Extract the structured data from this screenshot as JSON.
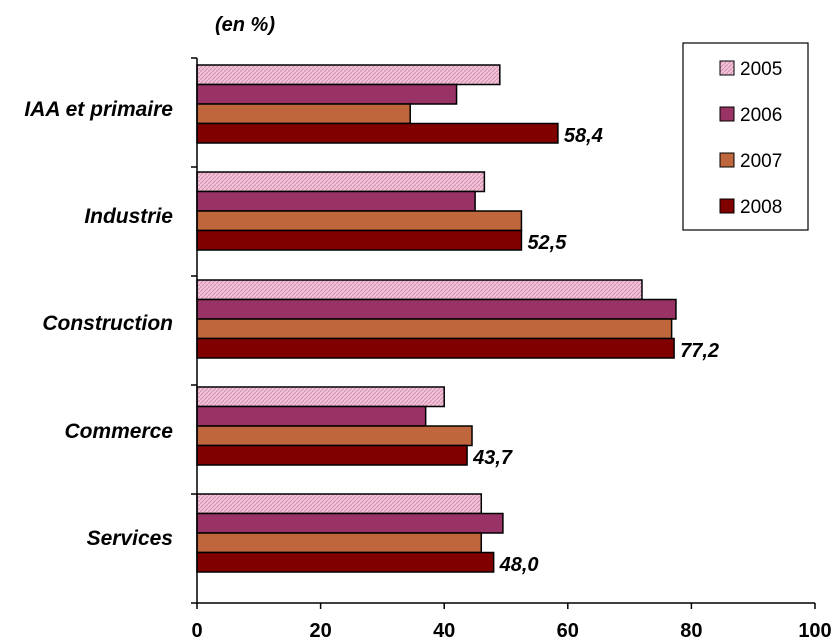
{
  "chart_data": {
    "type": "bar",
    "orientation": "horizontal",
    "unit_label": "(en %)",
    "categories": [
      "IAA et primaire",
      "Industrie",
      "Construction",
      "Commerce",
      "Services"
    ],
    "series": [
      {
        "name": "2005",
        "color": "#e6a8c4",
        "values": [
          49.0,
          46.5,
          72.0,
          40.0,
          46.0
        ]
      },
      {
        "name": "2006",
        "color": "#993366",
        "values": [
          42.0,
          45.0,
          77.5,
          37.0,
          49.5
        ]
      },
      {
        "name": "2007",
        "color": "#c0663c",
        "values": [
          34.5,
          52.5,
          76.8,
          44.5,
          46.0
        ]
      },
      {
        "name": "2008",
        "color": "#800000",
        "values": [
          58.4,
          52.5,
          77.2,
          43.7,
          48.0
        ]
      }
    ],
    "data_labels_2008": [
      "58,4",
      "52,5",
      "77,2",
      "43,7",
      "48,0"
    ],
    "xlim": [
      0,
      100
    ],
    "xticks": [
      "0",
      "20",
      "40",
      "60",
      "80",
      "100"
    ],
    "grid": false,
    "legend_position": "top-right"
  }
}
